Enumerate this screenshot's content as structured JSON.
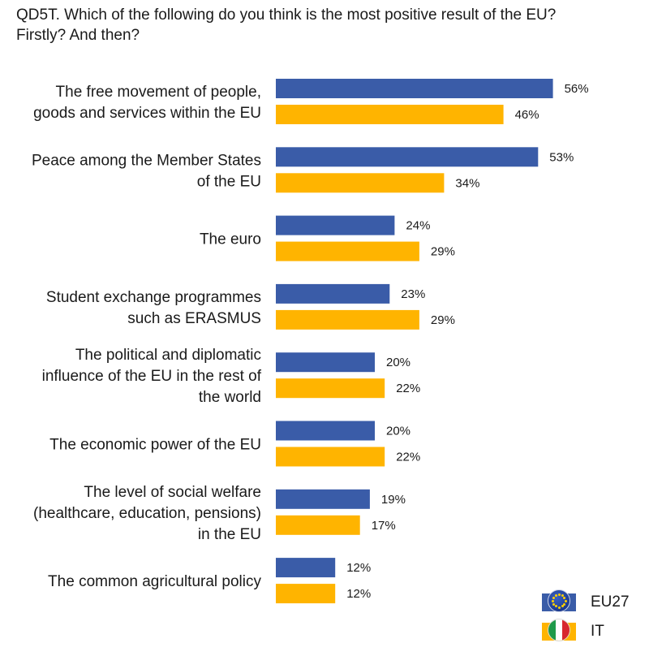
{
  "title_line1": "QD5T. Which of the following do you think is the most positive result of the EU?",
  "title_line2": "Firstly? And then?",
  "colors": {
    "eu27": "#3a5ca8",
    "it": "#ffb400"
  },
  "legend": [
    {
      "label": "EU27",
      "icon": "eu-flag-icon"
    },
    {
      "label": "IT",
      "icon": "italy-flag-icon"
    }
  ],
  "chart_data": {
    "type": "bar",
    "orientation": "horizontal",
    "unit": "%",
    "categories": [
      [
        "The free movement of people,",
        "goods and services within the EU"
      ],
      [
        "Peace among the Member States",
        "of the EU"
      ],
      [
        "The euro"
      ],
      [
        "Student exchange programmes",
        "such as ERASMUS"
      ],
      [
        "The political and diplomatic",
        "influence of the EU in the rest of",
        "the world"
      ],
      [
        "The economic power of the EU"
      ],
      [
        "The level of social welfare",
        "(healthcare, education, pensions)",
        "in the EU"
      ],
      [
        "The common agricultural policy"
      ]
    ],
    "series": [
      {
        "name": "EU27",
        "values": [
          56,
          53,
          24,
          23,
          20,
          20,
          19,
          12
        ]
      },
      {
        "name": "IT",
        "values": [
          46,
          34,
          29,
          29,
          22,
          22,
          17,
          12
        ]
      }
    ],
    "xlim": [
      0,
      56
    ],
    "legend_position": "bottom-right",
    "grid": false
  }
}
